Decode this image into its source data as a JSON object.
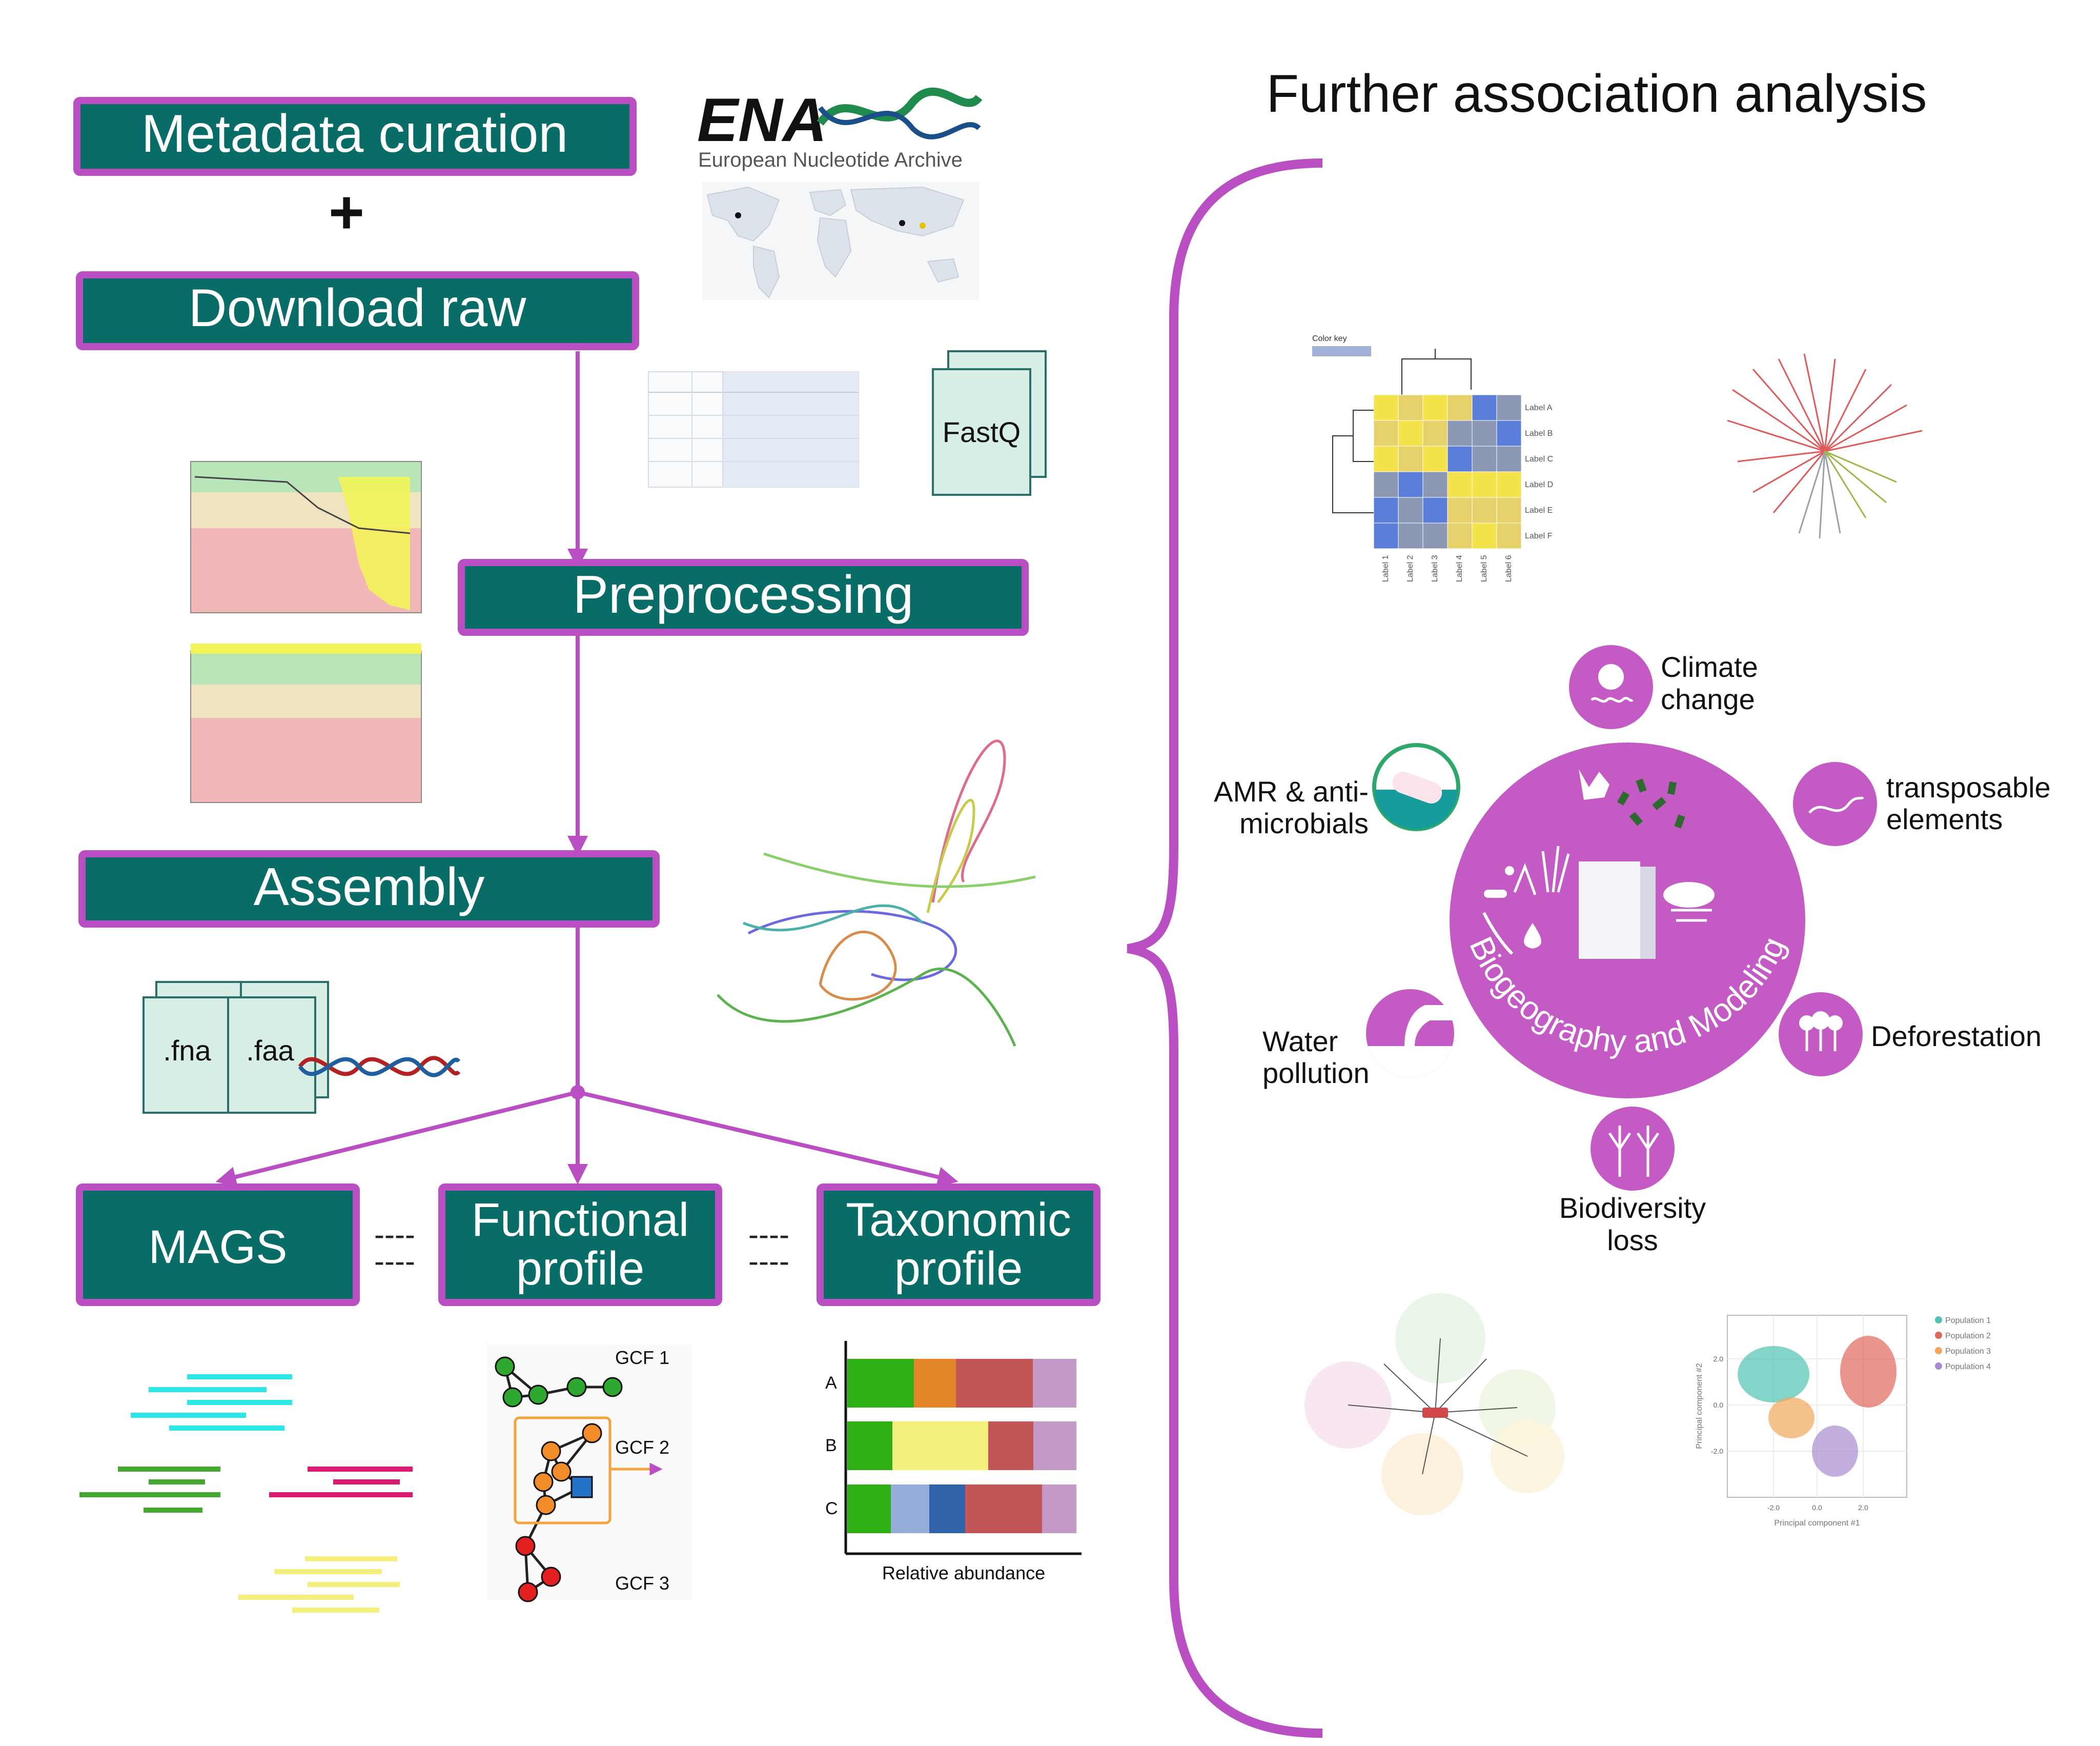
{
  "colors": {
    "box_fill": "#076D66",
    "box_border": "#B94FC2",
    "arrow": "#B94FC2",
    "topic_circle": "#C45AC4",
    "heatmap_yellow": "#F3E24A",
    "heatmap_blue": "#5B7FD9"
  },
  "title": "Further association analysis",
  "pipeline": {
    "metadata": "Metadata curation",
    "plus": "+",
    "download": "Download raw",
    "preprocessing": "Preprocessing",
    "assembly": "Assembly",
    "mags": "MAGS",
    "functional_l1": "Functional",
    "functional_l2": "profile",
    "taxonomic_l1": "Taxonomic",
    "taxonomic_l2": "profile",
    "dash": "----"
  },
  "ena": {
    "logo_text": "ENA",
    "subtitle": "European Nucleotide Archive"
  },
  "files": {
    "fastq": "FastQ",
    "fna": ".fna",
    "faa": ".faa"
  },
  "gcf": {
    "g1": "GCF 1",
    "g2": "GCF 2",
    "g3": "GCF 3"
  },
  "taxonomy_chart": {
    "rows": [
      "A",
      "B",
      "C"
    ],
    "xlabel": "Relative abundance"
  },
  "heatmap": {
    "color_key": "Color key",
    "row_labels": [
      "Label A",
      "Label B",
      "Label C",
      "Label D",
      "Label E",
      "Label F"
    ],
    "col_labels": [
      "Label 1",
      "Label 2",
      "Label 3",
      "Label 4",
      "Label 5",
      "Label 6"
    ]
  },
  "center": {
    "label": "Biogeography and Modeling"
  },
  "topics": {
    "climate_l1": "Climate",
    "climate_l2": "change",
    "transposable_l1": "transposable",
    "transposable_l2": "elements",
    "amr_l1": "AMR & anti-",
    "amr_l2": "microbials",
    "deforestation": "Deforestation",
    "water_l1": "Water",
    "water_l2": "pollution",
    "biodiversity_l1": "Biodiversity",
    "biodiversity_l2": "loss"
  },
  "pca": {
    "legend": [
      "Population 1",
      "Population 2",
      "Population 3",
      "Population 4"
    ],
    "legend_colors": [
      "#4EC3B3",
      "#E0685B",
      "#F2A85A",
      "#A98BD3"
    ],
    "xlabel": "Principal component #1",
    "ylabel": "Principal component #2",
    "xticks": [
      "-2.0",
      "0.0",
      "2.0"
    ],
    "yticks": [
      "2.0",
      "0.0",
      "-2.0"
    ]
  }
}
